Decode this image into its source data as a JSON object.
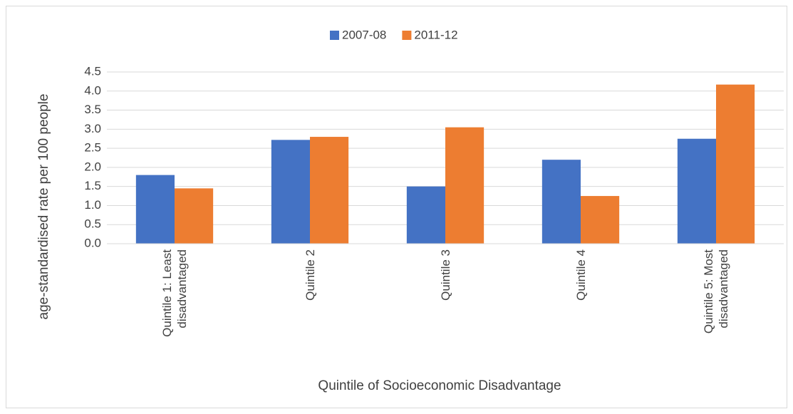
{
  "chart_data": {
    "type": "bar",
    "x_label": "Quintile of Socioeconomic Disadvantage",
    "y_label": "age-standardised rate per 100 people",
    "categories": [
      "Quintile 1: Least disadvantaged",
      "Quintile 2",
      "Quintile 3",
      "Quintile 4",
      "Quintile 5: Most disadvantaged"
    ],
    "series": [
      {
        "name": "2007-08",
        "color": "#4472c4",
        "values": [
          1.8,
          2.72,
          1.5,
          2.2,
          2.75
        ]
      },
      {
        "name": "2011-12",
        "color": "#ed7d31",
        "values": [
          1.45,
          2.8,
          3.05,
          1.25,
          4.17
        ]
      }
    ],
    "ylim": [
      0,
      4.5
    ],
    "yticks": [
      {
        "value": 0,
        "label": "0.0"
      },
      0.5,
      {
        "value": 1,
        "label": "1.0"
      },
      1.5,
      {
        "value": 2,
        "label": "2.0"
      },
      2.5,
      {
        "value": 3,
        "label": "3.0"
      },
      3.5,
      {
        "value": 4,
        "label": "4.0"
      },
      4.5
    ],
    "grid": true,
    "legend": "top"
  }
}
